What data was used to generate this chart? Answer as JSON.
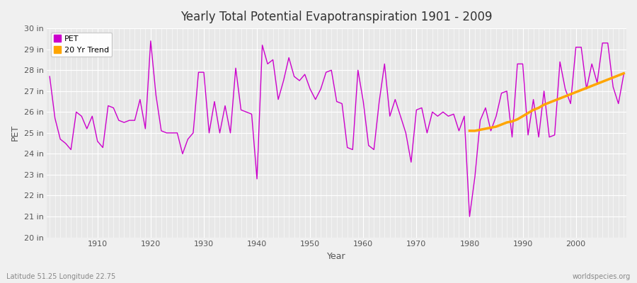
{
  "title": "Yearly Total Potential Evapotranspiration 1901 - 2009",
  "xlabel": "Year",
  "ylabel": "PET",
  "subtitle_left": "Latitude 51.25 Longitude 22.75",
  "subtitle_right": "worldspecies.org",
  "fig_bg_color": "#f0f0f0",
  "plot_bg_color": "#e8e8e8",
  "grid_color": "#ffffff",
  "pet_color": "#cc00cc",
  "trend_color": "#ffa500",
  "ylim": [
    20,
    30
  ],
  "yticks": [
    20,
    21,
    22,
    23,
    24,
    25,
    26,
    27,
    28,
    29,
    30
  ],
  "ytick_labels": [
    "20 in",
    "21 in",
    "22 in",
    "23 in",
    "24 in",
    "25 in",
    "26 in",
    "27 in",
    "28 in",
    "29 in",
    "30 in"
  ],
  "xlim_min": 1901,
  "xlim_max": 2009,
  "xticks": [
    1910,
    1920,
    1930,
    1940,
    1950,
    1960,
    1970,
    1980,
    1990,
    2000
  ],
  "years": [
    1901,
    1902,
    1903,
    1904,
    1905,
    1906,
    1907,
    1908,
    1909,
    1910,
    1911,
    1912,
    1913,
    1914,
    1915,
    1916,
    1917,
    1918,
    1919,
    1920,
    1921,
    1922,
    1923,
    1924,
    1925,
    1926,
    1927,
    1928,
    1929,
    1930,
    1931,
    1932,
    1933,
    1934,
    1935,
    1936,
    1937,
    1938,
    1939,
    1940,
    1941,
    1942,
    1943,
    1944,
    1945,
    1946,
    1947,
    1948,
    1949,
    1950,
    1951,
    1952,
    1953,
    1954,
    1955,
    1956,
    1957,
    1958,
    1959,
    1960,
    1961,
    1962,
    1963,
    1964,
    1965,
    1966,
    1967,
    1968,
    1969,
    1970,
    1971,
    1972,
    1973,
    1974,
    1975,
    1976,
    1977,
    1978,
    1979,
    1980,
    1981,
    1982,
    1983,
    1984,
    1985,
    1986,
    1987,
    1988,
    1989,
    1990,
    1991,
    1992,
    1993,
    1994,
    1995,
    1996,
    1997,
    1998,
    1999,
    2000,
    2001,
    2002,
    2003,
    2004,
    2005,
    2006,
    2007,
    2008,
    2009
  ],
  "pet_values": [
    27.7,
    25.7,
    24.7,
    24.5,
    24.2,
    26.0,
    25.8,
    25.2,
    25.8,
    24.6,
    24.3,
    26.3,
    26.2,
    25.6,
    25.5,
    25.6,
    25.6,
    26.6,
    25.2,
    29.4,
    26.8,
    25.1,
    25.0,
    25.0,
    25.0,
    24.0,
    24.7,
    25.0,
    27.9,
    27.9,
    25.0,
    26.5,
    25.0,
    26.3,
    25.0,
    28.1,
    26.1,
    26.0,
    25.9,
    22.8,
    29.2,
    28.3,
    28.5,
    26.6,
    27.5,
    28.6,
    27.7,
    27.5,
    27.8,
    27.1,
    26.6,
    27.1,
    27.9,
    28.0,
    26.5,
    26.4,
    24.3,
    24.2,
    28.0,
    26.5,
    24.4,
    24.2,
    26.5,
    28.3,
    25.8,
    26.6,
    25.8,
    25.0,
    23.6,
    26.1,
    26.2,
    25.0,
    26.0,
    25.8,
    26.0,
    25.8,
    25.9,
    25.1,
    25.8,
    21.0,
    22.9,
    25.6,
    26.2,
    25.1,
    25.8,
    26.9,
    27.0,
    24.8,
    28.3,
    28.3,
    24.9,
    26.6,
    24.8,
    27.0,
    24.8,
    24.9,
    28.4,
    27.1,
    26.4,
    29.1,
    29.1,
    27.1,
    28.3,
    27.4,
    29.3,
    29.3,
    27.2,
    26.4,
    27.8
  ],
  "trend_years": [
    1980,
    1981,
    1982,
    1983,
    1984,
    1985,
    1986,
    1987,
    1988,
    1989,
    1990,
    1991,
    1992,
    1993,
    1994,
    1995,
    1996,
    1997,
    1998,
    1999,
    2000,
    2001,
    2002,
    2003,
    2004,
    2005,
    2006,
    2007,
    2008,
    2009
  ],
  "trend_values": [
    25.1,
    25.1,
    25.15,
    25.2,
    25.25,
    25.3,
    25.4,
    25.5,
    25.55,
    25.65,
    25.8,
    25.95,
    26.1,
    26.2,
    26.35,
    26.45,
    26.55,
    26.65,
    26.75,
    26.85,
    26.95,
    27.05,
    27.15,
    27.25,
    27.35,
    27.45,
    27.55,
    27.65,
    27.75,
    27.85
  ]
}
